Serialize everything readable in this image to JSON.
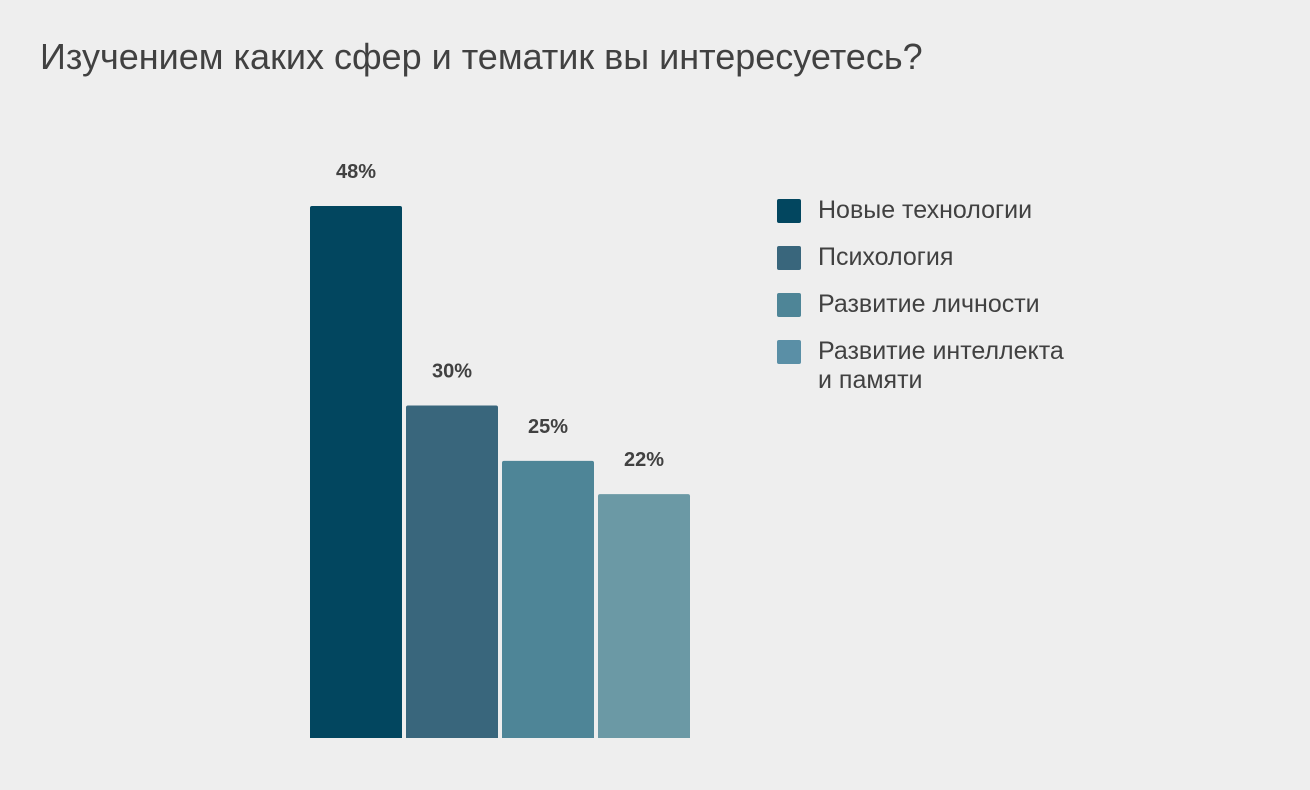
{
  "page": {
    "background": "#eeeeee",
    "text_color": "#414141"
  },
  "chart_data": {
    "type": "bar",
    "title": "Изучением каких сфер и тематик вы интересуетесь?",
    "categories": [
      "Новые технологии",
      "Психология",
      "Развитие личности",
      "Развитие интеллекта и памяти"
    ],
    "legend_labels": [
      [
        "Новые технологии"
      ],
      [
        "Психология"
      ],
      [
        "Развитие личности"
      ],
      [
        "Развитие интеллекта",
        "и памяти"
      ]
    ],
    "values": [
      48,
      30,
      25,
      22
    ],
    "value_labels": [
      "48%",
      "30%",
      "25%",
      "22%"
    ],
    "unit": "%",
    "colors": [
      "#02465f",
      "#39667c",
      "#4e8597",
      "#6b99a5"
    ],
    "legend_colors": [
      "#02465f",
      "#39667c",
      "#4e8597",
      "#5a8fa6"
    ],
    "ylim": [
      0,
      48
    ],
    "grid": false,
    "legend_position": "right"
  }
}
